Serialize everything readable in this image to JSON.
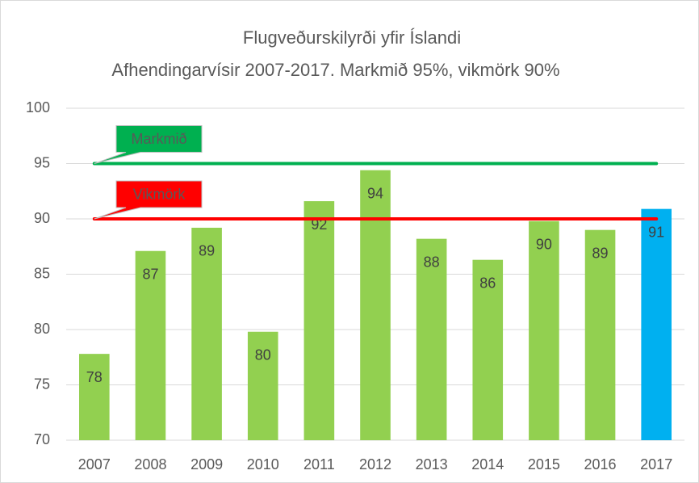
{
  "chart_data": {
    "type": "bar",
    "title": "Flugveðurskilyrði yfir Íslandi",
    "subtitle": "Afhendingarvísir 2007-2017. Markmið 95%, vikmörk 90%",
    "categories": [
      "2007",
      "2008",
      "2009",
      "2010",
      "2011",
      "2012",
      "2013",
      "2014",
      "2015",
      "2016",
      "2017"
    ],
    "values": [
      77.8,
      87.1,
      89.2,
      79.8,
      91.6,
      94.4,
      88.2,
      86.3,
      89.8,
      89.0,
      90.9
    ],
    "value_labels": [
      "78",
      "87",
      "89",
      "80",
      "92",
      "94",
      "88",
      "86",
      "90",
      "89",
      "91"
    ],
    "colors": [
      "#92d050",
      "#92d050",
      "#92d050",
      "#92d050",
      "#92d050",
      "#92d050",
      "#92d050",
      "#92d050",
      "#92d050",
      "#92d050",
      "#00b0f0"
    ],
    "reference_lines": [
      {
        "name": "Markmið",
        "value": 95,
        "color": "#00b050"
      },
      {
        "name": "Vikmörk",
        "value": 90,
        "color": "#ff0000"
      }
    ],
    "ylim": [
      70,
      100
    ],
    "yticks": [
      70,
      75,
      80,
      85,
      90,
      95,
      100
    ],
    "grid": true
  }
}
